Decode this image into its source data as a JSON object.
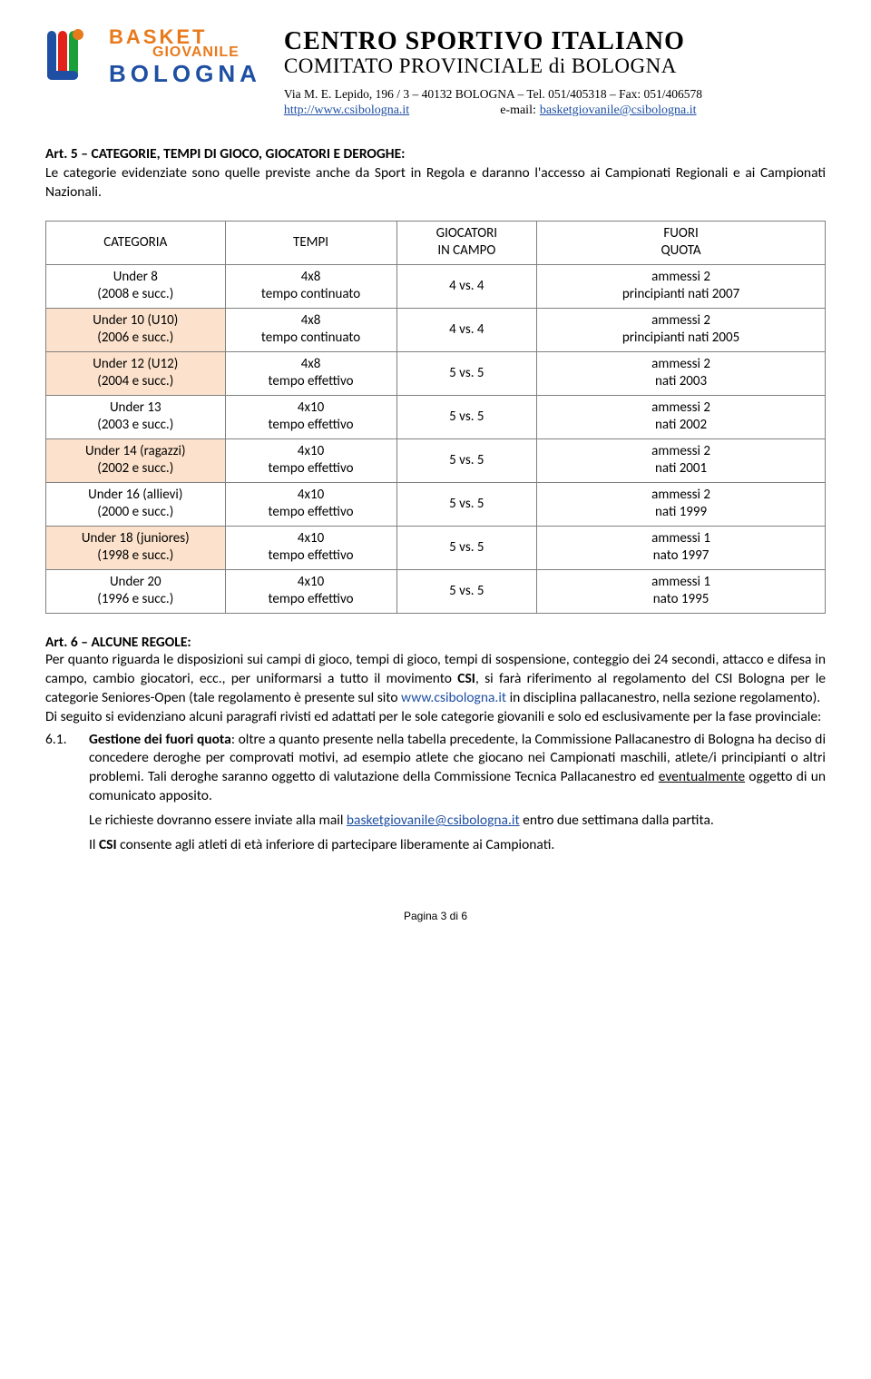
{
  "header": {
    "basket_line1": "BASKET",
    "basket_line2": "GIOVANILE",
    "basket_line3": "BOLOGNA",
    "title1": "CENTRO SPORTIVO ITALIANO",
    "title2": "COMITATO PROVINCIALE di BOLOGNA",
    "contact": "Via M. E. Lepido, 196 / 3 – 40132 BOLOGNA – Tel. 051/405318 – Fax: 051/406578",
    "url": "http://www.csibologna.it",
    "email_label": "e-mail:",
    "email": "basketgiovanile@csibologna.it"
  },
  "art5": {
    "heading": "Art. 5 – CATEGORIE, TEMPI DI GIOCO, GIOCATORI E DEROGHE:",
    "body": "Le categorie evidenziate sono quelle previste anche da Sport in Regola e daranno l'accesso ai Campionati Regionali e ai Campionati Nazionali."
  },
  "table": {
    "head": {
      "categoria": "CATEGORIA",
      "tempi": "TEMPI",
      "giocatori_l1": "GIOCATORI",
      "giocatori_l2": "IN CAMPO",
      "fuori_l1": "FUORI",
      "fuori_l2": "QUOTA"
    },
    "rows": [
      {
        "peach": false,
        "cat_l1": "Under 8",
        "cat_l2": "(2008 e succ.)",
        "tempi_l1": "4x8",
        "tempi_l2": "tempo continuato",
        "gioc": "4 vs. 4",
        "fuori_l1": "ammessi 2",
        "fuori_l2": "principianti nati 2007"
      },
      {
        "peach": true,
        "cat_l1": "Under 10 (U10)",
        "cat_l2": "(2006 e succ.)",
        "tempi_l1": "4x8",
        "tempi_l2": "tempo continuato",
        "gioc": "4 vs. 4",
        "fuori_l1": "ammessi 2",
        "fuori_l2": "principianti nati 2005"
      },
      {
        "peach": true,
        "cat_l1": "Under 12 (U12)",
        "cat_l2": "(2004 e succ.)",
        "tempi_l1": "4x8",
        "tempi_l2": "tempo effettivo",
        "gioc": "5 vs. 5",
        "fuori_l1": "ammessi 2",
        "fuori_l2": "nati 2003"
      },
      {
        "peach": false,
        "cat_l1": "Under 13",
        "cat_l2": "(2003 e succ.)",
        "tempi_l1": "4x10",
        "tempi_l2": "tempo effettivo",
        "gioc": "5 vs. 5",
        "fuori_l1": "ammessi 2",
        "fuori_l2": "nati 2002"
      },
      {
        "peach": true,
        "cat_l1": "Under 14 (ragazzi)",
        "cat_l2": "(2002 e succ.)",
        "tempi_l1": "4x10",
        "tempi_l2": "tempo effettivo",
        "gioc": "5 vs. 5",
        "fuori_l1": "ammessi 2",
        "fuori_l2": "nati 2001"
      },
      {
        "peach": false,
        "cat_l1": "Under 16 (allievi)",
        "cat_l2": "(2000 e succ.)",
        "tempi_l1": "4x10",
        "tempi_l2": "tempo effettivo",
        "gioc": "5 vs. 5",
        "fuori_l1": "ammessi 2",
        "fuori_l2": "nati 1999"
      },
      {
        "peach": true,
        "cat_l1": "Under 18 (juniores)",
        "cat_l2": "(1998 e succ.)",
        "tempi_l1": "4x10",
        "tempi_l2": "tempo effettivo",
        "gioc": "5 vs. 5",
        "fuori_l1": "ammessi 1",
        "fuori_l2": "nato 1997"
      },
      {
        "peach": false,
        "cat_l1": "Under 20",
        "cat_l2": "(1996 e succ.)",
        "tempi_l1": "4x10",
        "tempi_l2": "tempo effettivo",
        "gioc": "5 vs. 5",
        "fuori_l1": "ammessi 1",
        "fuori_l2": "nato 1995"
      }
    ],
    "peach_color": "#fce2cc",
    "border_color": "#808080"
  },
  "art6": {
    "heading": "Art. 6 – ALCUNE REGOLE:",
    "p1_a": "Per quanto riguarda le disposizioni sui campi di gioco, tempi di gioco, tempi di sospensione, conteggio dei 24 secondi, attacco e difesa in campo, cambio giocatori, ecc., per uniformarsi a tutto il movimento ",
    "p1_bold": "CSI",
    "p1_b": ", si farà riferimento al regolamento del CSI Bologna per le categorie Seniores-Open (tale regolamento è presente sul sito ",
    "p1_link": "www.csibologna.it",
    "p1_c": " in disciplina pallacanestro, nella sezione regolamento).",
    "p2": "Di seguito si evidenziano alcuni paragrafi rivisti ed adattati per le sole categorie giovanili e solo ed esclusivamente per la fase provinciale:",
    "item_num": "6.1.",
    "item_p1_a": "Gestione dei fuori quota",
    "item_p1_b": ": oltre a quanto presente nella tabella precedente, la Commissione Pallacanestro di Bologna ha deciso di concedere deroghe per comprovati motivi, ad esempio atlete che giocano nei Campionati maschili, atlete/i principianti o altri problemi. Tali deroghe saranno oggetto di valutazione della Commissione Tecnica Pallacanestro ed ",
    "item_p1_under": "eventualmente",
    "item_p1_c": " oggetto di un comunicato apposito.",
    "item_p2_a": "Le richieste dovranno essere inviate alla mail ",
    "item_p2_link": "basketgiovanile@csibologna.it",
    "item_p2_b": " entro due settimana dalla partita.",
    "item_p3_a": "Il ",
    "item_p3_bold": "CSI",
    "item_p3_b": " consente agli atleti di età inferiore di partecipare liberamente ai Campionati."
  },
  "footer": "Pagina 3 di 6"
}
